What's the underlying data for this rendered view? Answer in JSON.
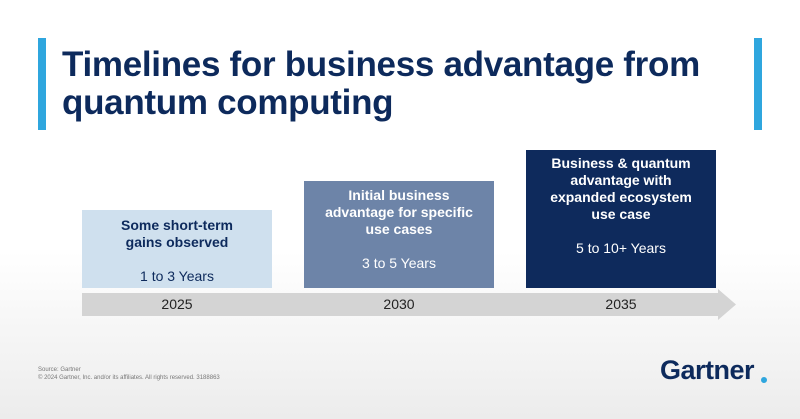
{
  "header": {
    "title_lines": [
      "Timelines for business advantage from",
      "quantum computing"
    ]
  },
  "stages": [
    {
      "description_lines": [
        "Some short-term",
        "gains observed"
      ],
      "duration": "1 to 3 Years",
      "year": "2025"
    },
    {
      "description_lines": [
        "Initial business",
        "advantage for specific",
        "use cases"
      ],
      "duration": "3 to 5 Years",
      "year": "2030"
    },
    {
      "description_lines": [
        "Business & quantum",
        "advantage with",
        "expanded ecosystem",
        "use case"
      ],
      "duration": "5 to 10+ Years",
      "year": "2035"
    }
  ],
  "footer": {
    "source": "Source: Gartner",
    "copyright": "© 2024 Gartner, Inc. and/or its affiliates. All rights reserved. 3188863",
    "logo": "Gartner"
  }
}
